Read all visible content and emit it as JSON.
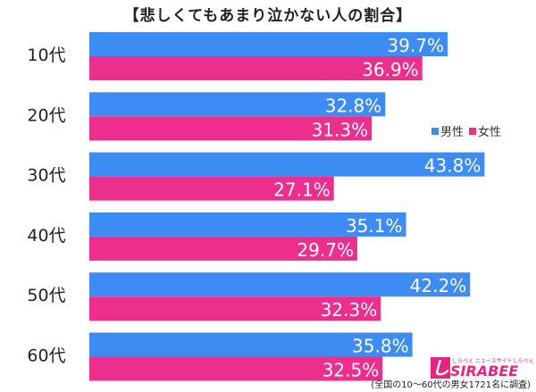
{
  "title": "【悲しくてもあまり泣かない人の割合】",
  "legend": {
    "male": "男性",
    "female": "女性"
  },
  "colors": {
    "male": "#3d8cf4",
    "female": "#ec2f8c"
  },
  "logo": {
    "mark": "し",
    "sub": "しらべぇ ニュースサイトしらべぇ",
    "word": "SIRABEE"
  },
  "footnote": "(全国の10〜60代の男女1721名に調査)",
  "chart_data": {
    "type": "bar",
    "orientation": "horizontal",
    "title": "【悲しくてもあまり泣かない人の割合】",
    "categories": [
      "10代",
      "20代",
      "30代",
      "40代",
      "50代",
      "60代"
    ],
    "series": [
      {
        "name": "男性",
        "values": [
          39.7,
          32.8,
          43.8,
          35.1,
          42.2,
          35.8
        ]
      },
      {
        "name": "女性",
        "values": [
          36.9,
          31.3,
          27.1,
          29.7,
          32.3,
          32.5
        ]
      }
    ],
    "value_labels": [
      [
        "39.7%",
        "36.9%"
      ],
      [
        "32.8%",
        "31.3%"
      ],
      [
        "43.8%",
        "27.1%"
      ],
      [
        "35.1%",
        "29.7%"
      ],
      [
        "42.2%",
        "32.3%"
      ],
      [
        "35.8%",
        "32.5%"
      ]
    ],
    "xlim": [
      0,
      45
    ],
    "grid": false,
    "legend_position": "right"
  }
}
